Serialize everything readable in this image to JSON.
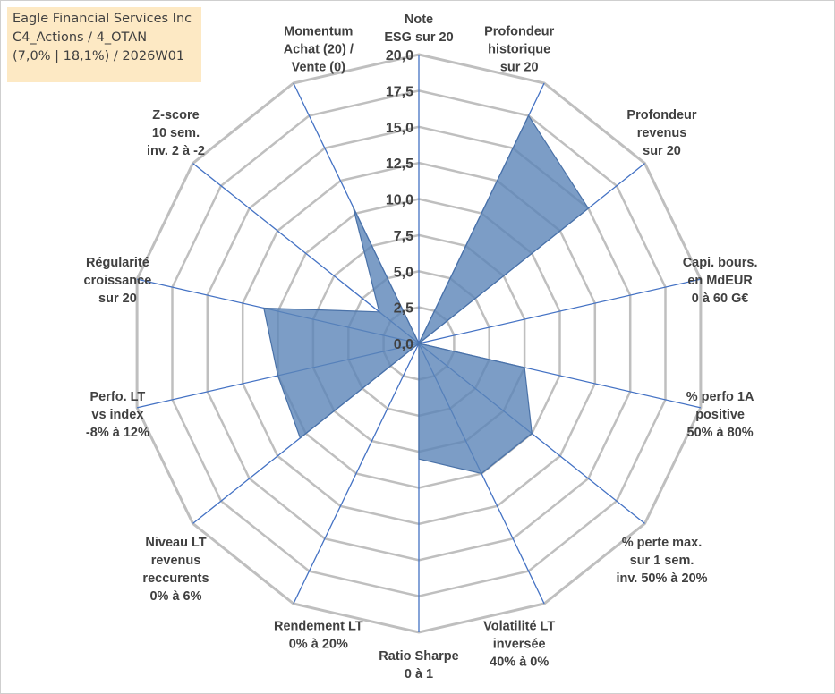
{
  "info_box": {
    "line1": "Eagle Financial Services Inc",
    "line2": "C4_Actions / 4_OTAN",
    "line3": "(7,0% | 18,1%) / 2026W01"
  },
  "colors": {
    "fill": "#5b84b8",
    "fill_opacity": 0.8,
    "stroke": "#4a72a8",
    "spokes": "#4472c4",
    "grid": "#bfbfbf",
    "text": "#404040",
    "info_bg": "#fde9c4"
  },
  "chart_data": {
    "type": "radar",
    "title": "",
    "range": [
      0,
      20
    ],
    "tick_step": 2.5,
    "tick_labels": [
      "0,0",
      "2,5",
      "5,0",
      "7,5",
      "10,0",
      "12,5",
      "15,0",
      "17,5",
      "20,0"
    ],
    "grid": true,
    "legend": "none",
    "axes": [
      [
        "Note",
        "ESG sur 20"
      ],
      [
        "Profondeur",
        "historique",
        "sur 20"
      ],
      [
        "Profondeur",
        "revenus",
        "sur 20"
      ],
      [
        "Capi. bours.",
        "en MdEUR",
        "0 à 60 G€"
      ],
      [
        "% perfo 1A",
        "positive",
        "50% à 80%"
      ],
      [
        "% perte max.",
        "sur 1 sem.",
        "inv. 50% à 20%"
      ],
      [
        "Volatilité LT",
        "inversée",
        "40% à 0%"
      ],
      [
        "Ratio Sharpe",
        "0 à 1"
      ],
      [
        "Rendement LT",
        "0% à 20%"
      ],
      [
        "Niveau LT",
        "revenus",
        "reccurents",
        "0% à 6%"
      ],
      [
        "Perfo. LT",
        "vs index",
        "-8% à 12%"
      ],
      [
        "Régularité",
        "croissance",
        "sur 20"
      ],
      [
        "Z-score",
        "10 sem.",
        "inv. 2 à -2"
      ],
      [
        "Momentum",
        "Achat (20) /",
        "Vente (0)"
      ]
    ],
    "series": [
      {
        "values": [
          0,
          17.5,
          15.0,
          0,
          7.5,
          10.0,
          10.0,
          8.0,
          0,
          10.5,
          10.0,
          11.0,
          3.5,
          10.5
        ]
      }
    ]
  }
}
